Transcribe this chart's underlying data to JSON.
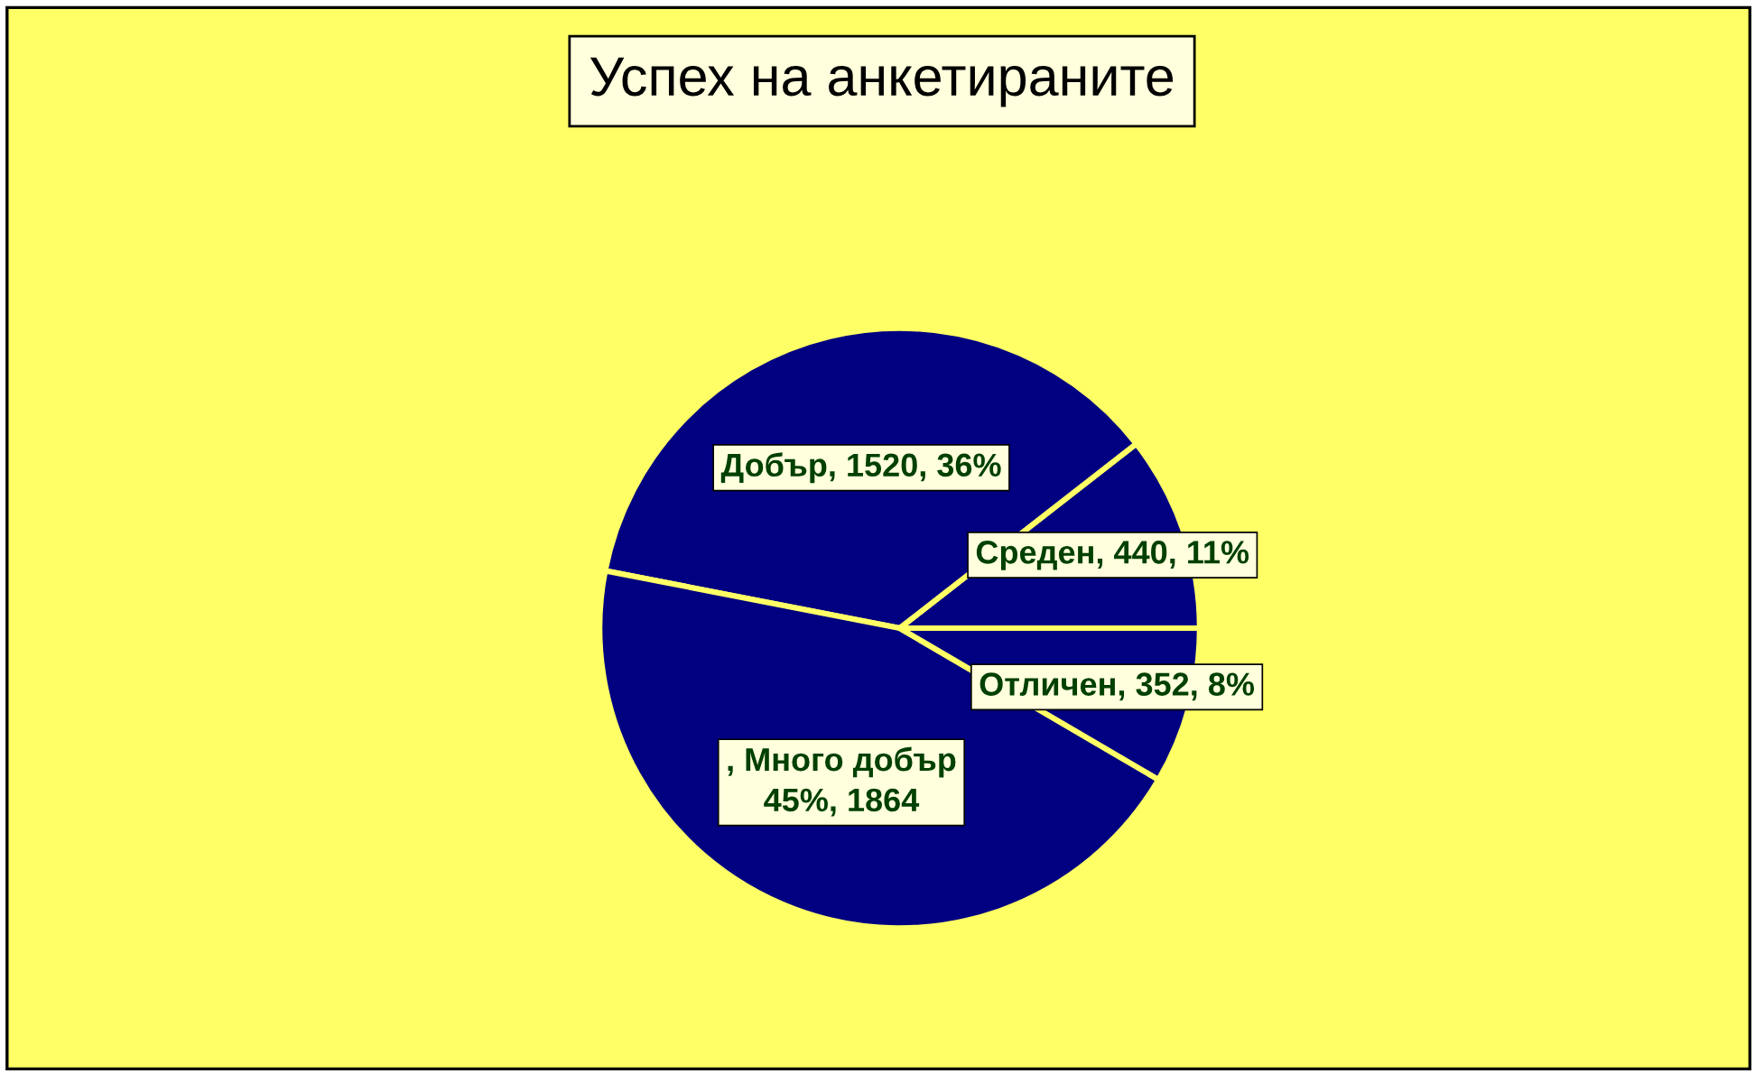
{
  "chart_data": {
    "type": "pie",
    "title": "Успех на анкетираните",
    "categories": [
      "Среден",
      "Добър",
      "Много добър",
      "Отличен"
    ],
    "values": [
      440,
      1520,
      1864,
      352
    ],
    "colors": [
      "#000080",
      "#000080",
      "#000080",
      "#000080"
    ],
    "value_labels": [
      ", 440, 11%",
      ", 1520, 36%",
      ", \n45%, 1864",
      ", 352, 8%"
    ]
  }
}
